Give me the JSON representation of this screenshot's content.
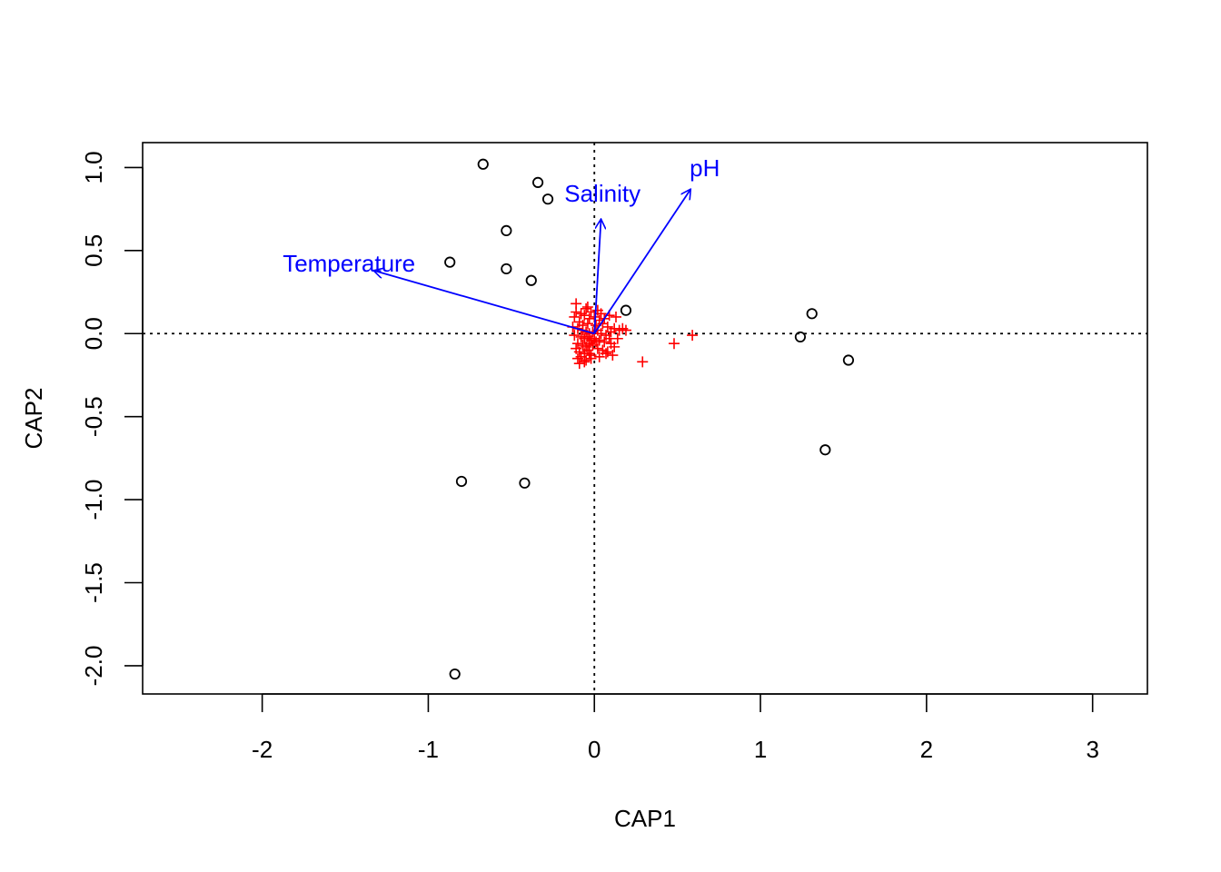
{
  "chart_data": {
    "type": "scatter",
    "title": "",
    "xlabel": "CAP1",
    "ylabel": "CAP2",
    "xlim": [
      -2.72,
      3.33
    ],
    "ylim": [
      -2.17,
      1.15
    ],
    "x_ticks": [
      -2,
      -1,
      0,
      1,
      2,
      3
    ],
    "y_ticks": [
      1.0,
      0.5,
      0.0,
      -0.5,
      -1.0,
      -1.5,
      -2.0
    ],
    "x_tick_labels": [
      "-2",
      "-1",
      "0",
      "1",
      "2",
      "3"
    ],
    "y_tick_labels": [
      "1.0",
      "0.5",
      "0.0",
      "-0.5",
      "-1.0",
      "-1.5",
      "-2.0"
    ],
    "grid": false,
    "reference_lines": {
      "x": 0,
      "y": 0,
      "style": "dotted"
    },
    "colors": {
      "sites": "#000000",
      "species": "#ff0000",
      "vectors": "#0000ff"
    },
    "sites": {
      "marker": "circle-open",
      "x": [
        -0.67,
        -0.34,
        -0.28,
        -0.53,
        -0.87,
        -0.53,
        -0.38,
        0.19,
        1.31,
        1.24,
        1.53,
        1.39,
        -0.8,
        -0.42,
        -0.84
      ],
      "y": [
        1.02,
        0.91,
        0.81,
        0.62,
        0.43,
        0.39,
        0.32,
        0.14,
        0.12,
        -0.02,
        -0.16,
        -0.7,
        -0.89,
        -0.9,
        -2.05
      ]
    },
    "species": {
      "marker": "plus",
      "x": [
        -0.11,
        -0.05,
        -0.02,
        0.02,
        0.04,
        -0.08,
        -0.12,
        -0.06,
        -0.03,
        0.0,
        0.03,
        0.06,
        0.09,
        0.13,
        0.17,
        0.19,
        -0.09,
        -0.04,
        0.01,
        0.05,
        0.08,
        0.12,
        0.15,
        -0.13,
        -0.1,
        -0.07,
        -0.05,
        -0.03,
        -0.01,
        0.02,
        0.04,
        0.07,
        0.1,
        0.14,
        -0.12,
        -0.08,
        -0.06,
        -0.04,
        -0.02,
        0.0,
        0.01,
        0.03,
        0.06,
        0.09,
        -0.1,
        -0.07,
        -0.05,
        -0.03,
        -0.01,
        0.02,
        0.05,
        0.08,
        0.12,
        -0.11,
        -0.09,
        -0.06,
        -0.04,
        -0.02,
        0.03,
        0.07,
        0.11,
        -0.1,
        -0.08,
        -0.05,
        -0.02,
        0.1,
        -0.09,
        -0.06,
        -0.03,
        -0.07,
        -0.11,
        -0.04,
        0.48,
        0.59,
        0.29
      ],
      "y": [
        0.18,
        0.15,
        0.13,
        0.14,
        0.12,
        0.12,
        0.1,
        0.11,
        0.09,
        0.1,
        0.08,
        0.09,
        0.11,
        0.1,
        0.03,
        0.02,
        0.07,
        0.06,
        0.05,
        0.06,
        0.04,
        0.03,
        0.02,
        0.04,
        0.03,
        0.02,
        0.01,
        0.0,
        0.01,
        0.02,
        0.0,
        -0.01,
        0.01,
        -0.03,
        -0.01,
        -0.02,
        -0.03,
        -0.02,
        -0.04,
        -0.03,
        -0.05,
        -0.04,
        -0.05,
        -0.03,
        -0.06,
        -0.07,
        -0.08,
        -0.06,
        -0.07,
        -0.09,
        -0.1,
        -0.11,
        -0.08,
        -0.09,
        -0.11,
        -0.12,
        -0.1,
        -0.13,
        -0.14,
        -0.12,
        -0.13,
        -0.15,
        -0.14,
        -0.16,
        -0.15,
        -0.06,
        -0.18,
        -0.17,
        -0.12,
        0.05,
        0.13,
        0.16,
        -0.06,
        -0.01,
        -0.17
      ]
    },
    "vectors": [
      {
        "label": "Temperature",
        "x": -1.33,
        "y": 0.38
      },
      {
        "label": "Salinity",
        "x": 0.04,
        "y": 0.69
      },
      {
        "label": "pH",
        "x": 0.58,
        "y": 0.87
      }
    ]
  }
}
